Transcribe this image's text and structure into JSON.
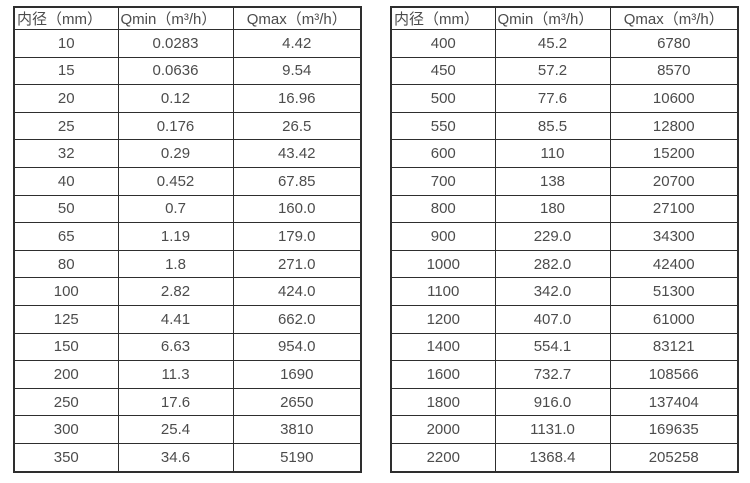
{
  "tables": [
    {
      "name": "small-diameter-flow-rates",
      "headers": [
        "内径（mm）",
        "Qmin（m³/h）",
        "Qmax（m³/h）"
      ],
      "rows": [
        [
          "10",
          "0.0283",
          "4.42"
        ],
        [
          "15",
          "0.0636",
          "9.54"
        ],
        [
          "20",
          "0.12",
          "16.96"
        ],
        [
          "25",
          "0.176",
          "26.5"
        ],
        [
          "32",
          "0.29",
          "43.42"
        ],
        [
          "40",
          "0.452",
          "67.85"
        ],
        [
          "50",
          "0.7",
          "160.0"
        ],
        [
          "65",
          "1.19",
          "179.0"
        ],
        [
          "80",
          "1.8",
          "271.0"
        ],
        [
          "100",
          "2.82",
          "424.0"
        ],
        [
          "125",
          "4.41",
          "662.0"
        ],
        [
          "150",
          "6.63",
          "954.0"
        ],
        [
          "200",
          "11.3",
          "1690"
        ],
        [
          "250",
          "17.6",
          "2650"
        ],
        [
          "300",
          "25.4",
          "3810"
        ],
        [
          "350",
          "34.6",
          "5190"
        ]
      ]
    },
    {
      "name": "large-diameter-flow-rates",
      "headers": [
        "内径（mm）",
        "Qmin（m³/h）",
        "Qmax（m³/h）"
      ],
      "rows": [
        [
          "400",
          "45.2",
          "6780"
        ],
        [
          "450",
          "57.2",
          "8570"
        ],
        [
          "500",
          "77.6",
          "10600"
        ],
        [
          "550",
          "85.5",
          "12800"
        ],
        [
          "600",
          "110",
          "15200"
        ],
        [
          "700",
          "138",
          "20700"
        ],
        [
          "800",
          "180",
          "27100"
        ],
        [
          "900",
          "229.0",
          "34300"
        ],
        [
          "1000",
          "282.0",
          "42400"
        ],
        [
          "1100",
          "342.0",
          "51300"
        ],
        [
          "1200",
          "407.0",
          "61000"
        ],
        [
          "1400",
          "554.1",
          "83121"
        ],
        [
          "1600",
          "732.7",
          "108566"
        ],
        [
          "1800",
          "916.0",
          "137404"
        ],
        [
          "2000",
          "1131.0",
          "169635"
        ],
        [
          "2200",
          "1368.4",
          "205258"
        ]
      ]
    }
  ],
  "colors": {
    "border": "#2e2e2e",
    "text": "#4c4c4c",
    "background": "#ffffff"
  }
}
